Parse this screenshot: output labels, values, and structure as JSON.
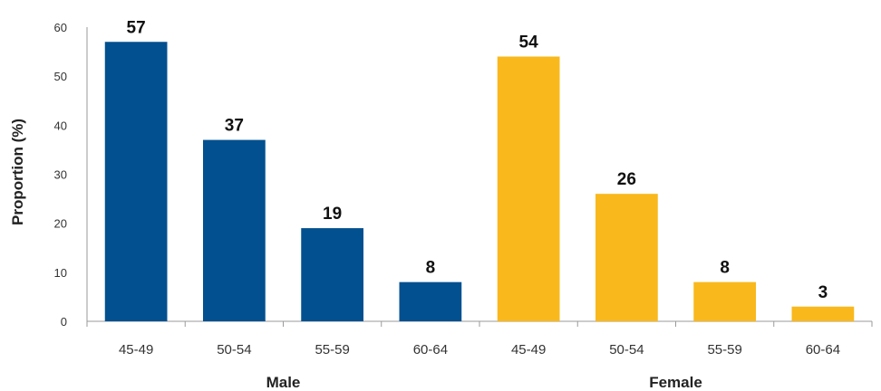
{
  "chart_data": {
    "type": "bar",
    "title": "",
    "xlabel": "",
    "ylabel": "Proportion (%)",
    "ylim": [
      0,
      60
    ],
    "yticks": [
      0,
      10,
      20,
      30,
      40,
      50,
      60
    ],
    "grid": false,
    "legend": "none",
    "groups": [
      {
        "name": "Male",
        "color": "#02508f"
      },
      {
        "name": "Female",
        "color": "#f9b81b"
      }
    ],
    "categories": [
      "45-49",
      "50-54",
      "55-59",
      "60-64",
      "45-49",
      "50-54",
      "55-59",
      "60-64"
    ],
    "values": [
      57,
      37,
      19,
      8,
      54,
      26,
      8,
      3
    ],
    "data_labels": [
      "57",
      "37",
      "19",
      "8",
      "54",
      "26",
      "8",
      "3"
    ],
    "bar_group": [
      0,
      0,
      0,
      0,
      1,
      1,
      1,
      1
    ]
  }
}
